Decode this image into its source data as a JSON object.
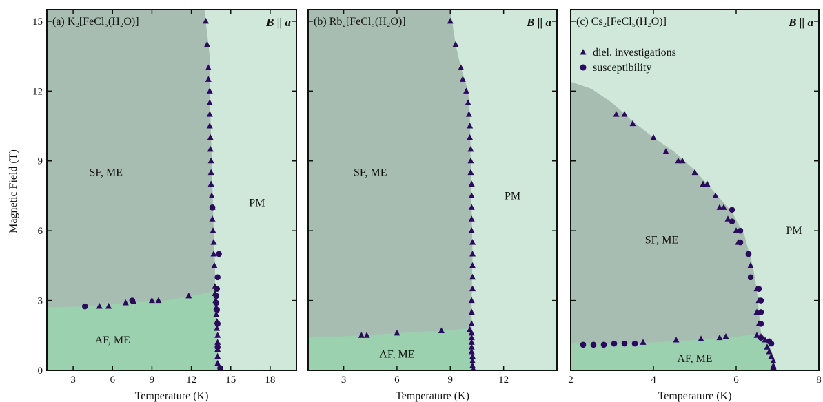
{
  "colors": {
    "pm": "#cfe8d9",
    "sf": "#a8bdb2",
    "af": "#9bd1ae",
    "marker": "#2b0a5e",
    "axis": "#111111"
  },
  "figure": {
    "ylabel": "Magnetic Field (T)",
    "legend": {
      "triangle_label": "diel. investigations",
      "circle_label": "susceptibility"
    }
  },
  "chart_data": [
    {
      "type": "scatter",
      "panel_label": "(a) K₂[FeCl₅(H₂O)]",
      "field_direction": "B || a",
      "xlabel": "Temperature (K)",
      "xlim": [
        1.0,
        20.0
      ],
      "ylim": [
        0,
        15.5
      ],
      "xticks": [
        3,
        6,
        9,
        12,
        15,
        18
      ],
      "yticks": [
        0,
        3,
        6,
        9,
        12,
        15
      ],
      "regions": {
        "af_label": "AF, ME",
        "sf_label": "SF, ME",
        "pm_label": "PM",
        "af_boundary": [
          [
            1.0,
            2.7
          ],
          [
            4.0,
            2.75
          ],
          [
            7.0,
            2.9
          ],
          [
            10.0,
            3.0
          ],
          [
            12.0,
            3.2
          ],
          [
            13.8,
            3.4
          ]
        ],
        "sf_boundary": [
          [
            14.1,
            0.0
          ],
          [
            14.0,
            1.0
          ],
          [
            13.9,
            2.0
          ],
          [
            13.8,
            3.0
          ],
          [
            13.8,
            4.5
          ],
          [
            13.7,
            6.0
          ],
          [
            13.6,
            8.0
          ],
          [
            13.5,
            10.0
          ],
          [
            13.4,
            12.0
          ],
          [
            13.4,
            13.5
          ],
          [
            13.1,
            15.0
          ],
          [
            13.0,
            15.5
          ]
        ]
      },
      "series": [
        {
          "marker": "triangle",
          "points": [
            [
              5.0,
              2.75
            ],
            [
              5.7,
              2.75
            ],
            [
              7.0,
              2.9
            ],
            [
              7.6,
              2.95
            ],
            [
              9.0,
              3.0
            ],
            [
              9.5,
              3.0
            ],
            [
              11.8,
              3.2
            ],
            [
              14.0,
              0.3
            ],
            [
              14.0,
              0.6
            ],
            [
              14.0,
              0.9
            ],
            [
              14.0,
              1.2
            ],
            [
              14.0,
              1.5
            ],
            [
              13.95,
              1.8
            ],
            [
              13.95,
              2.1
            ],
            [
              13.9,
              2.4
            ],
            [
              13.9,
              2.7
            ],
            [
              13.85,
              3.0
            ],
            [
              13.8,
              3.3
            ],
            [
              13.8,
              3.6
            ],
            [
              13.75,
              4.5
            ],
            [
              13.7,
              5.0
            ],
            [
              13.7,
              5.5
            ],
            [
              13.65,
              6.0
            ],
            [
              13.6,
              6.5
            ],
            [
              13.6,
              7.0
            ],
            [
              13.55,
              7.5
            ],
            [
              13.5,
              8.0
            ],
            [
              13.5,
              8.5
            ],
            [
              13.5,
              9.0
            ],
            [
              13.45,
              9.5
            ],
            [
              13.45,
              10.0
            ],
            [
              13.4,
              10.5
            ],
            [
              13.4,
              11.0
            ],
            [
              13.4,
              11.5
            ],
            [
              13.4,
              12.0
            ],
            [
              13.3,
              12.5
            ],
            [
              13.3,
              13.0
            ],
            [
              13.2,
              14.0
            ],
            [
              13.1,
              15.0
            ]
          ]
        },
        {
          "marker": "circle",
          "points": [
            [
              3.9,
              2.75
            ],
            [
              7.5,
              3.0
            ],
            [
              14.2,
              0.1
            ],
            [
              14.0,
              1.0
            ],
            [
              14.0,
              2.0
            ],
            [
              13.95,
              2.6
            ],
            [
              13.9,
              2.9
            ],
            [
              13.9,
              3.2
            ],
            [
              13.95,
              3.5
            ],
            [
              14.0,
              4.0
            ],
            [
              14.1,
              5.0
            ],
            [
              13.6,
              7.0
            ]
          ]
        }
      ]
    },
    {
      "type": "scatter",
      "panel_label": "(b) Rb₂[FeCl₅(H₂O)]",
      "field_direction": "B || a",
      "xlabel": "Temperature (K)",
      "xlim": [
        1.0,
        15.0
      ],
      "ylim": [
        0,
        15.5
      ],
      "xticks": [
        3,
        6,
        9,
        12
      ],
      "yticks": [
        0,
        3,
        6,
        9,
        12,
        15
      ],
      "regions": {
        "af_label": "AF, ME",
        "sf_label": "SF, ME",
        "pm_label": "PM",
        "af_boundary": [
          [
            1.0,
            1.4
          ],
          [
            4.0,
            1.5
          ],
          [
            6.0,
            1.6
          ],
          [
            8.5,
            1.7
          ],
          [
            10.0,
            1.8
          ]
        ],
        "sf_boundary": [
          [
            10.3,
            0.0
          ],
          [
            10.25,
            1.0
          ],
          [
            10.2,
            2.0
          ],
          [
            10.2,
            3.0
          ],
          [
            10.25,
            5.0
          ],
          [
            10.2,
            7.0
          ],
          [
            10.15,
            9.0
          ],
          [
            10.1,
            11.0
          ],
          [
            10.0,
            12.0
          ],
          [
            9.6,
            13.0
          ],
          [
            9.3,
            14.0
          ],
          [
            9.1,
            15.0
          ],
          [
            9.0,
            15.5
          ]
        ]
      },
      "series": [
        {
          "marker": "triangle",
          "points": [
            [
              4.0,
              1.5
            ],
            [
              4.3,
              1.5
            ],
            [
              6.0,
              1.6
            ],
            [
              8.5,
              1.7
            ],
            [
              10.1,
              1.75
            ],
            [
              10.2,
              1.6
            ],
            [
              10.2,
              1.4
            ],
            [
              10.2,
              1.2
            ],
            [
              10.2,
              1.0
            ],
            [
              10.2,
              0.8
            ],
            [
              10.25,
              0.6
            ],
            [
              10.25,
              0.4
            ],
            [
              10.25,
              0.2
            ],
            [
              10.3,
              0.05
            ],
            [
              10.2,
              2.0
            ],
            [
              10.2,
              2.5
            ],
            [
              10.2,
              3.0
            ],
            [
              10.25,
              3.5
            ],
            [
              10.25,
              4.0
            ],
            [
              10.25,
              4.5
            ],
            [
              10.25,
              5.0
            ],
            [
              10.25,
              5.5
            ],
            [
              10.2,
              6.0
            ],
            [
              10.2,
              6.5
            ],
            [
              10.2,
              7.0
            ],
            [
              10.2,
              7.5
            ],
            [
              10.2,
              8.0
            ],
            [
              10.15,
              8.5
            ],
            [
              10.15,
              9.0
            ],
            [
              10.15,
              9.5
            ],
            [
              10.1,
              10.0
            ],
            [
              10.1,
              10.5
            ],
            [
              10.05,
              11.0
            ],
            [
              10.0,
              11.5
            ],
            [
              9.9,
              12.0
            ],
            [
              9.7,
              12.5
            ],
            [
              9.6,
              13.0
            ],
            [
              9.3,
              14.0
            ],
            [
              9.0,
              15.0
            ]
          ]
        }
      ]
    },
    {
      "type": "scatter",
      "panel_label": "(c) Cs₂[FeCl₅(H₂O)]",
      "field_direction": "B || a",
      "xlabel": "Temperature (K)",
      "xlim": [
        2.0,
        8.0
      ],
      "ylim": [
        0,
        15.5
      ],
      "xticks": [
        2,
        4,
        6,
        8
      ],
      "yticks": [
        0,
        3,
        6,
        9,
        12,
        15
      ],
      "regions": {
        "af_label": "AF, ME",
        "sf_label": "SF, ME",
        "pm_label": "PM",
        "af_boundary": [
          [
            2.0,
            1.15
          ],
          [
            3.0,
            1.15
          ],
          [
            4.0,
            1.2
          ],
          [
            5.0,
            1.3
          ],
          [
            6.0,
            1.45
          ],
          [
            6.5,
            1.55
          ],
          [
            6.8,
            1.1
          ],
          [
            6.9,
            0.6
          ],
          [
            6.95,
            0.0
          ]
        ],
        "sf_boundary": [
          [
            6.95,
            0.0
          ],
          [
            6.85,
            0.8
          ],
          [
            6.7,
            1.2
          ],
          [
            6.6,
            1.6
          ],
          [
            6.55,
            2.5
          ],
          [
            6.5,
            3.5
          ],
          [
            6.4,
            4.5
          ],
          [
            6.2,
            5.8
          ],
          [
            5.9,
            6.8
          ],
          [
            5.5,
            7.6
          ],
          [
            5.0,
            8.6
          ],
          [
            4.5,
            9.4
          ],
          [
            4.0,
            10.0
          ],
          [
            3.5,
            10.7
          ],
          [
            3.0,
            11.5
          ],
          [
            2.5,
            12.1
          ],
          [
            2.0,
            12.4
          ]
        ]
      },
      "series": [
        {
          "marker": "triangle",
          "points": [
            [
              3.1,
              11.0
            ],
            [
              3.3,
              11.0
            ],
            [
              3.5,
              10.6
            ],
            [
              4.0,
              10.0
            ],
            [
              4.3,
              9.4
            ],
            [
              4.6,
              9.0
            ],
            [
              4.7,
              9.0
            ],
            [
              5.0,
              8.5
            ],
            [
              5.2,
              8.0
            ],
            [
              5.3,
              8.0
            ],
            [
              5.5,
              7.5
            ],
            [
              5.6,
              7.0
            ],
            [
              5.7,
              7.0
            ],
            [
              5.8,
              6.5
            ],
            [
              6.0,
              6.0
            ],
            [
              6.05,
              5.5
            ],
            [
              6.35,
              4.5
            ],
            [
              6.5,
              3.5
            ],
            [
              6.55,
              3.0
            ],
            [
              6.5,
              2.5
            ],
            [
              6.55,
              2.0
            ],
            [
              6.5,
              1.5
            ],
            [
              6.6,
              1.45
            ],
            [
              6.7,
              1.3
            ],
            [
              6.75,
              1.0
            ],
            [
              6.8,
              0.8
            ],
            [
              6.85,
              0.6
            ],
            [
              6.9,
              0.4
            ],
            [
              6.9,
              0.2
            ],
            [
              6.9,
              0.05
            ],
            [
              3.75,
              1.2
            ],
            [
              4.55,
              1.3
            ],
            [
              5.15,
              1.35
            ],
            [
              5.6,
              1.4
            ],
            [
              5.75,
              1.45
            ]
          ]
        },
        {
          "marker": "circle",
          "points": [
            [
              2.3,
              1.1
            ],
            [
              2.55,
              1.1
            ],
            [
              2.8,
              1.1
            ],
            [
              3.05,
              1.15
            ],
            [
              3.3,
              1.15
            ],
            [
              3.55,
              1.15
            ],
            [
              5.9,
              6.9
            ],
            [
              5.9,
              6.4
            ],
            [
              6.1,
              6.0
            ],
            [
              6.1,
              5.5
            ],
            [
              6.3,
              5.0
            ],
            [
              6.35,
              4.0
            ],
            [
              6.55,
              3.5
            ],
            [
              6.6,
              3.0
            ],
            [
              6.6,
              2.5
            ],
            [
              6.6,
              2.0
            ],
            [
              6.6,
              1.4
            ],
            [
              6.8,
              1.25
            ],
            [
              6.85,
              1.15
            ],
            [
              6.9,
              0.05
            ]
          ]
        }
      ]
    }
  ]
}
